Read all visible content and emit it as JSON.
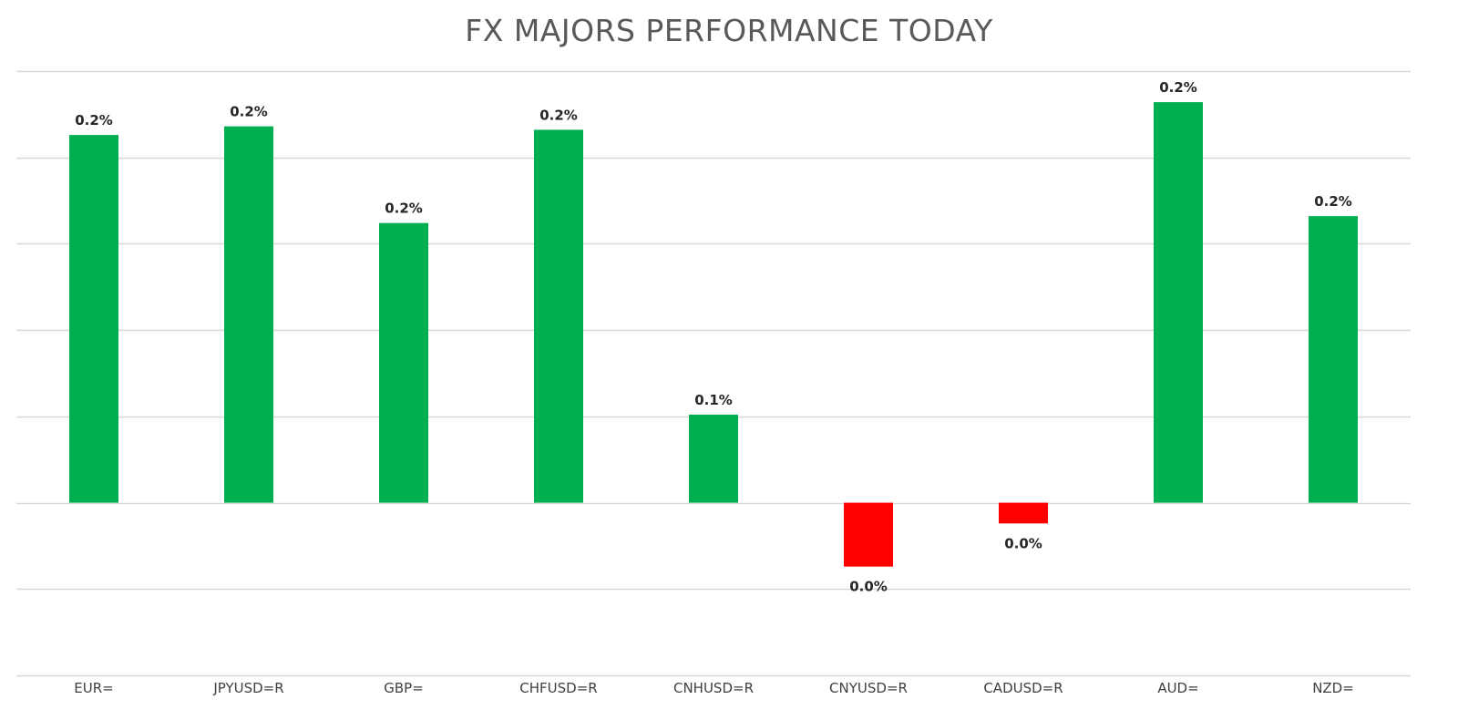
{
  "chart_data": {
    "type": "bar",
    "title": "FX MAJORS PERFORMANCE TODAY",
    "xlabel": "",
    "ylabel": "",
    "categories": [
      "EUR=",
      "JPYUSD=R",
      "GBP=",
      "CHFUSD=R",
      "CNHUSD=R",
      "CNYUSD=R",
      "CADUSD=R",
      "AUD=",
      "NZD="
    ],
    "values": [
      0.213,
      0.218,
      0.162,
      0.216,
      0.051,
      -0.037,
      -0.012,
      0.232,
      0.166
    ],
    "data_labels": [
      "0.2%",
      "0.2%",
      "0.2%",
      "0.2%",
      "0.1%",
      "0.0%",
      "0.0%",
      "0.2%",
      "0.2%"
    ],
    "ylim": [
      -0.1,
      0.25
    ],
    "gridline_step": 0.05,
    "y_ticks_shown": false,
    "grid": true,
    "legend": "none",
    "colors": {
      "positive": "#00b050",
      "negative": "#ff0000",
      "gridline": "#d9d9d9",
      "title": "#595959"
    }
  }
}
